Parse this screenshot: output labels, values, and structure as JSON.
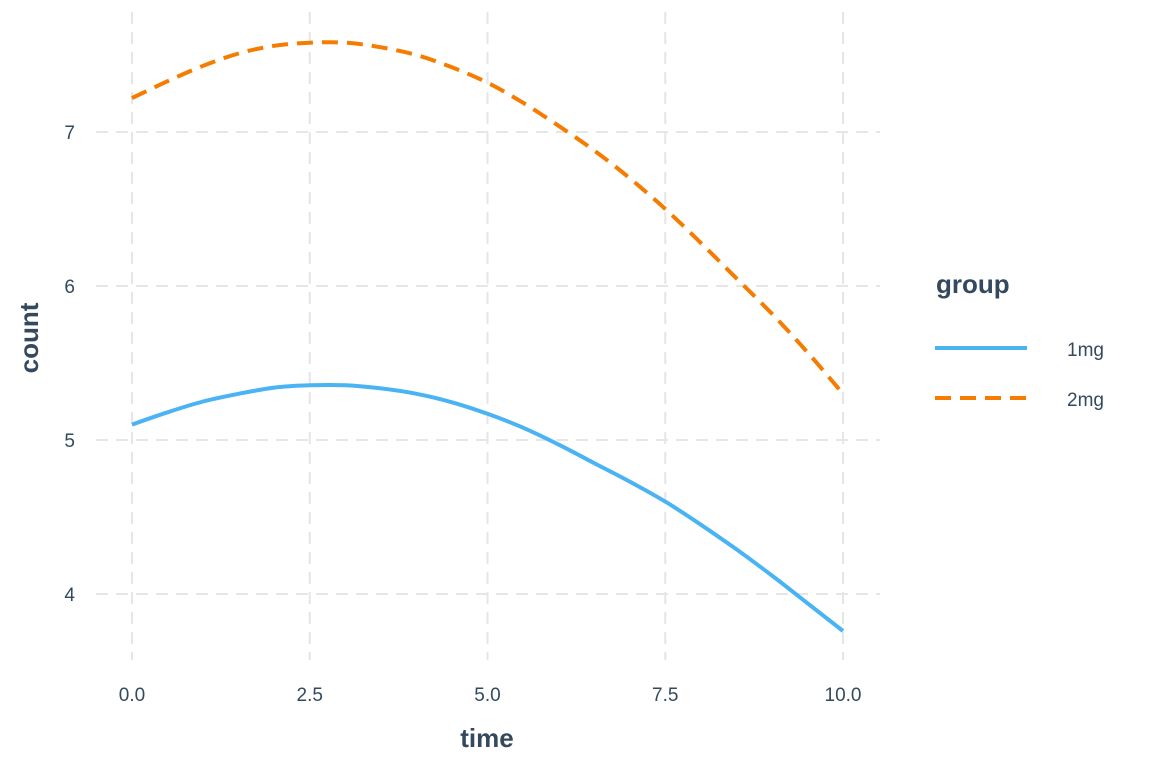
{
  "chart_data": {
    "type": "line",
    "xlabel": "time",
    "ylabel": "count",
    "xlim": [
      0,
      10
    ],
    "ylim": [
      3.6,
      7.8
    ],
    "x_ticks": [
      "0.0",
      "2.5",
      "5.0",
      "7.5",
      "10.0"
    ],
    "y_ticks": [
      "4",
      "5",
      "6",
      "7"
    ],
    "grid": true,
    "legend": {
      "title": "group",
      "placement": "right"
    },
    "x": [
      0,
      0.5,
      1,
      1.5,
      2,
      2.5,
      3,
      3.5,
      4,
      4.5,
      5,
      5.5,
      6,
      6.5,
      7,
      7.5,
      8,
      8.5,
      9,
      9.5,
      10
    ],
    "series": [
      {
        "name": "1mg",
        "color": "#4ab3f4",
        "dash": "solid",
        "values": [
          5.1,
          5.18,
          5.25,
          5.3,
          5.34,
          5.355,
          5.355,
          5.335,
          5.3,
          5.245,
          5.17,
          5.08,
          4.97,
          4.85,
          4.73,
          4.6,
          4.45,
          4.29,
          4.12,
          3.94,
          3.76
        ]
      },
      {
        "name": "2mg",
        "color": "#f57c00",
        "dash": "dashed",
        "values": [
          7.22,
          7.33,
          7.43,
          7.51,
          7.56,
          7.58,
          7.58,
          7.55,
          7.5,
          7.42,
          7.32,
          7.19,
          7.04,
          6.88,
          6.7,
          6.5,
          6.28,
          6.05,
          5.82,
          5.57,
          5.3
        ]
      }
    ]
  }
}
